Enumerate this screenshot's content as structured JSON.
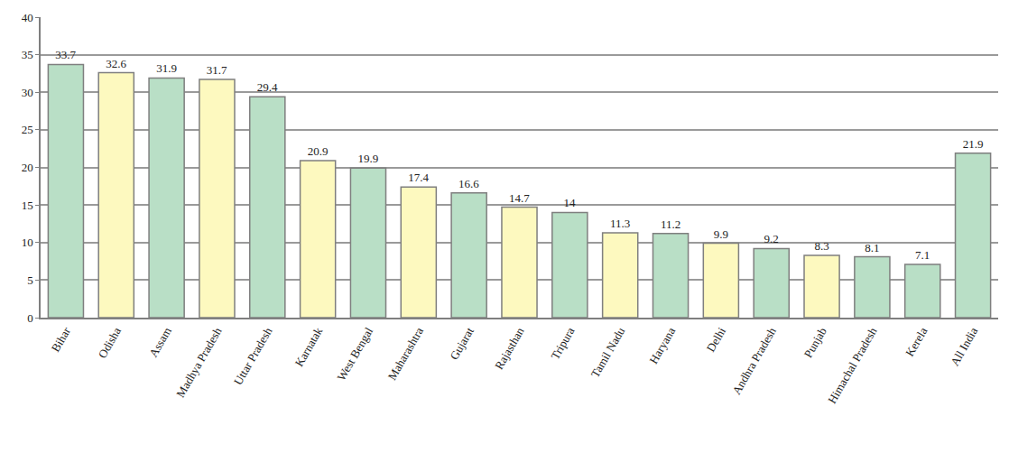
{
  "chart_data": {
    "type": "bar",
    "categories": [
      "Bihar",
      "Odisha",
      "Assam",
      "Madhya Pradesh",
      "Uttar Pradesh",
      "Karnatak",
      "West Bengal",
      "Maharashtra",
      "Gujarat",
      "Rajasthan",
      "Tripura",
      "Tamil Nadu",
      "Haryana",
      "Delhi",
      "Andhra Pradesh",
      "Punjab",
      "Himachal Pradesh",
      "Kerela",
      "All India"
    ],
    "values": [
      33.7,
      32.6,
      31.9,
      31.7,
      29.4,
      20.9,
      19.9,
      17.4,
      16.6,
      14.7,
      14,
      11.3,
      11.2,
      9.9,
      9.2,
      8.3,
      8.1,
      7.1,
      21.9
    ],
    "colors": [
      "#b9dfc6",
      "#fdf9bf",
      "#b9dfc6",
      "#fdf9bf",
      "#b9dfc6",
      "#fdf9bf",
      "#b9dfc6",
      "#fdf9bf",
      "#b9dfc6",
      "#fdf9bf",
      "#b9dfc6",
      "#fdf9bf",
      "#b9dfc6",
      "#fdf9bf",
      "#b9dfc6",
      "#fdf9bf",
      "#b9dfc6",
      "#b9dfc6",
      "#b9dfc6"
    ],
    "ylim": [
      0,
      40
    ],
    "yticks": [
      0,
      5,
      10,
      15,
      20,
      25,
      30,
      35,
      40
    ],
    "grid": true,
    "data_labels": true
  }
}
